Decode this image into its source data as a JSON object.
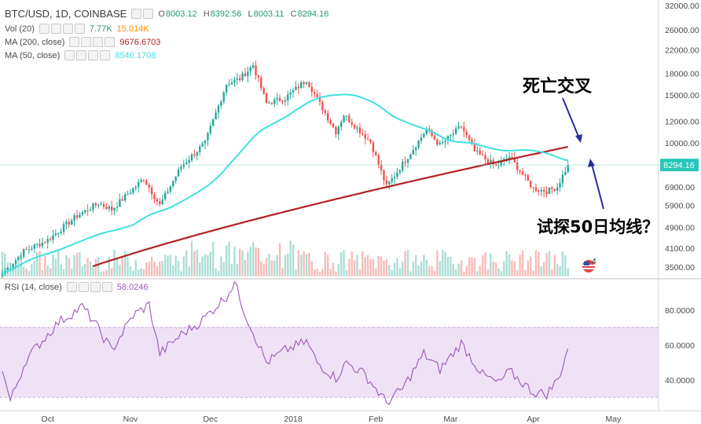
{
  "header": {
    "symbol": "BTC/USD, 1D, COINBASE",
    "ohlc": [
      {
        "k": "O",
        "v": "8003.12"
      },
      {
        "k": "H",
        "v": "8392.56"
      },
      {
        "k": "L",
        "v": "8003.11"
      },
      {
        "k": "C",
        "v": "8294.16"
      }
    ]
  },
  "indicators": {
    "vol": {
      "label": "Vol (20)",
      "v1": "7.77K",
      "v2": "15.014K",
      "c1": "#1e9b72",
      "c2": "#ff8c00"
    },
    "ma200": {
      "label": "MA (200, close)",
      "value": "9676.6703",
      "color": "#b22222"
    },
    "ma50": {
      "label": "MA (50, close)",
      "value": "8546.1708",
      "color": "#40e0e0"
    },
    "rsi": {
      "label": "RSI (14, close)",
      "value": "58.0246",
      "color": "#9b59b6"
    }
  },
  "annotations": {
    "death_cross": "死亡交叉",
    "test_ma50": "试探50日均线？"
  },
  "price_tag": "8294.16",
  "event_badge": "4",
  "colors": {
    "up": "#26a69a",
    "down": "#ef5350",
    "ma200": "#b22222",
    "ma50": "#40e0e0",
    "rsi": "#9b59b6",
    "rsi_band": "#efe2f7",
    "arrow": "#2a2aa0"
  },
  "chart_data": [
    {
      "type": "candlestick",
      "title": "BTC/USD, 1D, COINBASE",
      "scale": "log",
      "y_ticks": [
        "32000.00",
        "26000.00",
        "22000.00",
        "18000.00",
        "15000.00",
        "12000.00",
        "10000.00",
        "8294.16",
        "6900.00",
        "5900.00",
        "4900.00",
        "4100.00",
        "3500.00"
      ],
      "x_ticks": [
        "Oct",
        "Nov",
        "Dec",
        "2018",
        "Feb",
        "Mar",
        "Apr",
        "May"
      ],
      "series": [
        {
          "name": "MA (200, close)",
          "last": 9676.6703
        },
        {
          "name": "MA (50, close)",
          "last": 8546.1708
        }
      ],
      "anchors": [
        {
          "date": "2017-09-14",
          "close": 3300
        },
        {
          "date": "2017-09-22",
          "close": 4000
        },
        {
          "date": "2017-10-01",
          "close": 4400
        },
        {
          "date": "2017-10-12",
          "close": 5400
        },
        {
          "date": "2017-10-20",
          "close": 6000
        },
        {
          "date": "2017-10-25",
          "close": 5700
        },
        {
          "date": "2017-11-06",
          "close": 7400
        },
        {
          "date": "2017-11-12",
          "close": 5900
        },
        {
          "date": "2017-11-20",
          "close": 8200
        },
        {
          "date": "2017-11-29",
          "close": 10000
        },
        {
          "date": "2017-12-07",
          "close": 16500
        },
        {
          "date": "2017-12-12",
          "close": 17200
        },
        {
          "date": "2017-12-17",
          "close": 19300
        },
        {
          "date": "2017-12-22",
          "close": 14000
        },
        {
          "date": "2017-12-29",
          "close": 14600
        },
        {
          "date": "2018-01-06",
          "close": 17100
        },
        {
          "date": "2018-01-10",
          "close": 14500
        },
        {
          "date": "2018-01-17",
          "close": 11000
        },
        {
          "date": "2018-01-20",
          "close": 12700
        },
        {
          "date": "2018-01-30",
          "close": 10100
        },
        {
          "date": "2018-02-05",
          "close": 6900
        },
        {
          "date": "2018-02-10",
          "close": 8100
        },
        {
          "date": "2018-02-20",
          "close": 11200
        },
        {
          "date": "2018-02-25",
          "close": 9800
        },
        {
          "date": "2018-03-05",
          "close": 11500
        },
        {
          "date": "2018-03-10",
          "close": 9300
        },
        {
          "date": "2018-03-18",
          "close": 8200
        },
        {
          "date": "2018-03-23",
          "close": 8900
        },
        {
          "date": "2018-04-01",
          "close": 6800
        },
        {
          "date": "2018-04-06",
          "close": 6650
        },
        {
          "date": "2018-04-10",
          "close": 6900
        },
        {
          "date": "2018-04-14",
          "close": 8294.16
        }
      ]
    },
    {
      "type": "line",
      "title": "RSI (14, close)",
      "y_ticks": [
        "80.0000",
        "60.0000",
        "40.0000"
      ],
      "band": [
        30,
        70
      ],
      "last": 58.0246,
      "anchors": [
        {
          "date": "2017-09-14",
          "value": 45
        },
        {
          "date": "2017-09-17",
          "value": 28
        },
        {
          "date": "2017-09-23",
          "value": 52
        },
        {
          "date": "2017-10-05",
          "value": 73
        },
        {
          "date": "2017-10-14",
          "value": 82
        },
        {
          "date": "2017-10-18",
          "value": 74
        },
        {
          "date": "2017-10-25",
          "value": 57
        },
        {
          "date": "2017-11-02",
          "value": 77
        },
        {
          "date": "2017-11-08",
          "value": 83
        },
        {
          "date": "2017-11-12",
          "value": 55
        },
        {
          "date": "2017-11-20",
          "value": 66
        },
        {
          "date": "2017-11-27",
          "value": 73
        },
        {
          "date": "2017-12-07",
          "value": 88
        },
        {
          "date": "2017-12-10",
          "value": 96
        },
        {
          "date": "2017-12-14",
          "value": 78
        },
        {
          "date": "2017-12-22",
          "value": 50
        },
        {
          "date": "2017-12-29",
          "value": 57
        },
        {
          "date": "2018-01-06",
          "value": 62
        },
        {
          "date": "2018-01-10",
          "value": 50
        },
        {
          "date": "2018-01-17",
          "value": 41
        },
        {
          "date": "2018-01-21",
          "value": 50
        },
        {
          "date": "2018-01-28",
          "value": 43
        },
        {
          "date": "2018-02-05",
          "value": 27
        },
        {
          "date": "2018-02-11",
          "value": 35
        },
        {
          "date": "2018-02-19",
          "value": 55
        },
        {
          "date": "2018-02-25",
          "value": 46
        },
        {
          "date": "2018-03-05",
          "value": 61
        },
        {
          "date": "2018-03-13",
          "value": 43
        },
        {
          "date": "2018-03-19",
          "value": 38
        },
        {
          "date": "2018-03-23",
          "value": 45
        },
        {
          "date": "2018-04-01",
          "value": 33
        },
        {
          "date": "2018-04-06",
          "value": 32
        },
        {
          "date": "2018-04-10",
          "value": 40
        },
        {
          "date": "2018-04-12",
          "value": 48
        },
        {
          "date": "2018-04-14",
          "value": 58.0246
        }
      ]
    }
  ]
}
